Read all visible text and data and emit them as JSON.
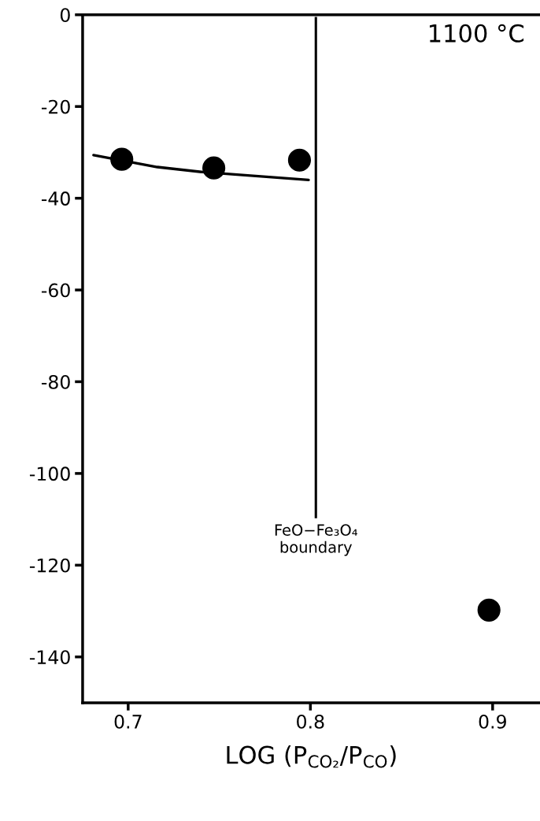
{
  "chart_data": {
    "type": "scatter",
    "xlabel": "LOG (P$_{CO₂}$/P$_{CO}$)",
    "series": [
      {
        "color": "#000000",
        "marker": "circle",
        "x": [
          0.6965,
          0.747,
          0.794,
          0.898
        ],
        "values": [
          -31.5,
          -33.4,
          -31.7,
          -129.8
        ]
      },
      {
        "type": "line",
        "color": "#000000",
        "marker": "none",
        "x": [
          0.681,
          0.716,
          0.741,
          0.799
        ],
        "values": [
          -30.6,
          -33.2,
          -34.3,
          -36.0
        ]
      }
    ],
    "ref_lines": [
      {
        "axis": "x",
        "value": 0.803,
        "label": "FeO−Fe₃O₄\nboundary",
        "color": "#000000",
        "line_style": "solid"
      }
    ],
    "annotations": [
      "1100 °C"
    ],
    "xlim": [
      0.675,
      0.926
    ],
    "ylim": [
      -150,
      0
    ],
    "xticks": [
      0.7,
      0.8,
      0.9
    ],
    "yticks": [
      0,
      -20,
      -40,
      -60,
      -80,
      -100,
      -120,
      -140
    ],
    "grid": false,
    "legend": false
  }
}
